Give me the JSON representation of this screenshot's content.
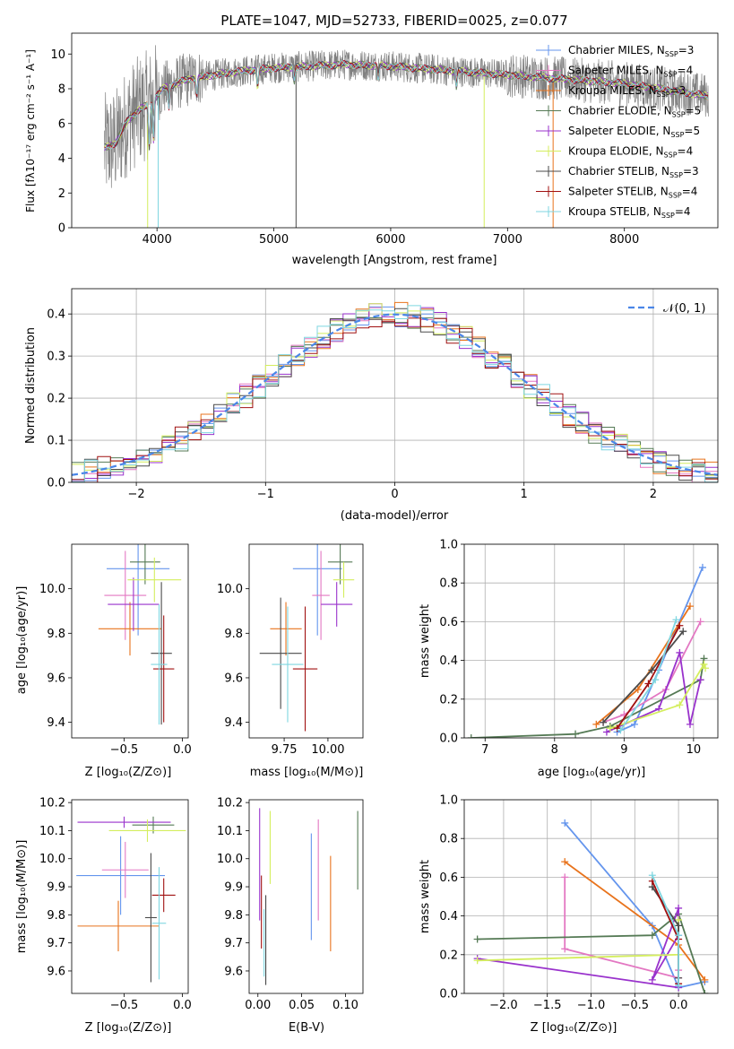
{
  "colors": {
    "Chabrier MILES": "#6495ed",
    "Salpeter MILES": "#e377c2",
    "Kroupa MILES": "#e8731c",
    "Chabrier ELODIE": "#557a55",
    "Salpeter ELODIE": "#9932cc",
    "Kroupa ELODIE": "#d4ee5e",
    "Chabrier STELIB": "#4a4a4a",
    "Salpeter STELIB": "#a01010",
    "Kroupa STELIB": "#7fd6e0",
    "data": "#808080"
  },
  "chart_data": [
    {
      "type": "line",
      "panel": "spectrum",
      "title": "PLATE=1047, MJD=52733, FIBERID=0025, z=0.077",
      "xlabel": "wavelength [Angstrom, rest frame]",
      "ylabel": "Flux [fλ10⁻¹⁷ erg cm⁻² s⁻¹ A⁻¹]",
      "xlim": [
        3270,
        8800
      ],
      "ylim": [
        0,
        11.2
      ],
      "xticks": [
        "4000",
        "5000",
        "6000",
        "7000",
        "8000"
      ],
      "yticks": [
        "0",
        "2",
        "4",
        "6",
        "8",
        "10"
      ],
      "continuum": {
        "x": [
          3550,
          3650,
          3750,
          3850,
          3950,
          4050,
          4150,
          4300,
          4500,
          4700,
          5000,
          5300,
          5600,
          6000,
          6400,
          6800,
          7200,
          7600,
          8000,
          8400,
          8700
        ],
        "y": [
          4.6,
          4.9,
          6.2,
          6.8,
          7.2,
          8.0,
          8.3,
          8.6,
          8.8,
          9.0,
          9.2,
          9.3,
          9.4,
          9.3,
          9.1,
          8.9,
          8.7,
          8.5,
          8.3,
          7.9,
          7.6
        ]
      },
      "series": [
        {
          "name": "Chabrier MILES",
          "nssp": "3"
        },
        {
          "name": "Salpeter MILES",
          "nssp": "4"
        },
        {
          "name": "Kroupa MILES",
          "nssp": "3"
        },
        {
          "name": "Chabrier ELODIE",
          "nssp": "5"
        },
        {
          "name": "Salpeter ELODIE",
          "nssp": "5"
        },
        {
          "name": "Kroupa ELODIE",
          "nssp": "4"
        },
        {
          "name": "Chabrier STELIB",
          "nssp": "3"
        },
        {
          "name": "Salpeter STELIB",
          "nssp": "4"
        },
        {
          "name": "Kroupa STELIB",
          "nssp": "4"
        }
      ],
      "legend": "right"
    },
    {
      "type": "bar",
      "panel": "residuals",
      "xlabel": "(data-model)/error",
      "ylabel": "Normed distribution",
      "xlim": [
        -2.5,
        2.5
      ],
      "ylim": [
        0,
        0.46
      ],
      "xticks": [
        "−2",
        "−1",
        "0",
        "1",
        "2"
      ],
      "yticks": [
        "0.0",
        "0.1",
        "0.2",
        "0.3",
        "0.4"
      ],
      "bin_width": 0.1,
      "gaussian_label": "𝒩(0, 1)",
      "gaussian_color": "#4a86e8",
      "legend": "top-right",
      "grid": true
    },
    {
      "type": "scatter",
      "panel": "age-vs-Z",
      "xlabel": "Z [log₁₀(Z/Z⊙)]",
      "ylabel": "age  [log₁₀(age/yr)]",
      "xlim": [
        -0.95,
        0.05
      ],
      "ylim": [
        9.33,
        10.2
      ],
      "xticks": [
        "−0.5",
        "0.0"
      ],
      "yticks": [
        "9.4",
        "9.6",
        "9.8",
        "10.0"
      ],
      "points": [
        {
          "series": "Chabrier MILES",
          "x": -0.38,
          "xerr": 0.27,
          "y": 10.09,
          "yerr": 0.3
        },
        {
          "series": "Salpeter MILES",
          "x": -0.49,
          "xerr": 0.18,
          "y": 9.97,
          "yerr": 0.2
        },
        {
          "series": "Kroupa MILES",
          "x": -0.45,
          "xerr": 0.27,
          "y": 9.82,
          "yerr": 0.12
        },
        {
          "series": "Chabrier ELODIE",
          "x": -0.32,
          "xerr": 0.13,
          "y": 10.12,
          "yerr": 0.1
        },
        {
          "series": "Salpeter ELODIE",
          "x": -0.42,
          "xerr": 0.22,
          "y": 9.93,
          "yerr": 0.12
        },
        {
          "series": "Kroupa ELODIE",
          "x": -0.24,
          "xerr": 0.23,
          "y": 10.04,
          "yerr": 0.1
        },
        {
          "series": "Chabrier STELIB",
          "x": -0.18,
          "xerr": 0.09,
          "y": 9.71,
          "yerr": 0.32
        },
        {
          "series": "Salpeter STELIB",
          "x": -0.16,
          "xerr": 0.09,
          "y": 9.64,
          "yerr": 0.24
        },
        {
          "series": "Kroupa STELIB",
          "x": -0.2,
          "xerr": 0.07,
          "y": 9.66,
          "yerr": 0.27
        }
      ]
    },
    {
      "type": "scatter",
      "panel": "age-vs-mass",
      "xlabel": "mass [log₁₀(M/M⊙)]",
      "xlim": [
        9.55,
        10.2
      ],
      "ylim": [
        9.33,
        10.2
      ],
      "xticks": [
        "9.75",
        "10.00"
      ],
      "yticks": [
        "9.4",
        "9.6",
        "9.8",
        "10.0"
      ],
      "points": [
        {
          "series": "Chabrier MILES",
          "x": 9.94,
          "xerr": 0.14,
          "y": 10.09,
          "yerr": 0.3
        },
        {
          "series": "Salpeter MILES",
          "x": 9.96,
          "xerr": 0.05,
          "y": 9.97,
          "yerr": 0.2
        },
        {
          "series": "Kroupa MILES",
          "x": 9.76,
          "xerr": 0.09,
          "y": 9.82,
          "yerr": 0.12
        },
        {
          "series": "Chabrier ELODIE",
          "x": 10.07,
          "xerr": 0.07,
          "y": 10.12,
          "yerr": 0.1
        },
        {
          "series": "Salpeter ELODIE",
          "x": 10.05,
          "xerr": 0.09,
          "y": 9.93,
          "yerr": 0.1
        },
        {
          "series": "Kroupa ELODIE",
          "x": 10.09,
          "xerr": 0.06,
          "y": 10.04,
          "yerr": 0.08
        },
        {
          "series": "Chabrier STELIB",
          "x": 9.73,
          "xerr": 0.12,
          "y": 9.71,
          "yerr": 0.25
        },
        {
          "series": "Salpeter STELIB",
          "x": 9.87,
          "xerr": 0.07,
          "y": 9.64,
          "yerr": 0.28
        },
        {
          "series": "Kroupa STELIB",
          "x": 9.77,
          "xerr": 0.09,
          "y": 9.66,
          "yerr": 0.26
        }
      ]
    },
    {
      "type": "line",
      "panel": "massweight-vs-age",
      "xlabel": "age  [log₁₀(age/yr)]",
      "ylabel": "mass weight",
      "xlim": [
        6.7,
        10.35
      ],
      "ylim": [
        0,
        1.0
      ],
      "xticks": [
        "7",
        "8",
        "9",
        "10"
      ],
      "yticks": [
        "0.0",
        "0.2",
        "0.4",
        "0.6",
        "0.8",
        "1.0"
      ],
      "grid": true,
      "series": [
        {
          "name": "Chabrier MILES",
          "x": [
            8.9,
            9.15,
            9.5,
            10.13
          ],
          "y": [
            0.03,
            0.07,
            0.35,
            0.88
          ]
        },
        {
          "name": "Salpeter MILES",
          "x": [
            8.7,
            9.0,
            9.6,
            10.1
          ],
          "y": [
            0.08,
            0.12,
            0.25,
            0.6
          ]
        },
        {
          "name": "Kroupa MILES",
          "x": [
            8.6,
            9.2,
            9.95
          ],
          "y": [
            0.07,
            0.25,
            0.68
          ]
        },
        {
          "name": "Chabrier ELODIE",
          "x": [
            6.8,
            8.3,
            8.8,
            10.1,
            10.15
          ],
          "y": [
            0.0,
            0.02,
            0.06,
            0.3,
            0.41
          ]
        },
        {
          "name": "Salpeter ELODIE",
          "x": [
            8.75,
            9.5,
            9.8,
            9.95,
            10.1
          ],
          "y": [
            0.03,
            0.15,
            0.44,
            0.07,
            0.3
          ]
        },
        {
          "name": "Kroupa ELODIE",
          "x": [
            8.8,
            9.8,
            10.15,
            10.17
          ],
          "y": [
            0.05,
            0.17,
            0.38,
            0.36
          ]
        },
        {
          "name": "Chabrier STELIB",
          "x": [
            8.7,
            9.4,
            9.85
          ],
          "y": [
            0.08,
            0.35,
            0.55
          ]
        },
        {
          "name": "Salpeter STELIB",
          "x": [
            8.9,
            9.35,
            9.8
          ],
          "y": [
            0.05,
            0.28,
            0.58
          ]
        },
        {
          "name": "Kroupa STELIB",
          "x": [
            8.95,
            9.45,
            9.75
          ],
          "y": [
            0.04,
            0.3,
            0.61
          ]
        }
      ]
    },
    {
      "type": "scatter",
      "panel": "mass-vs-Z",
      "xlabel": "Z [log₁₀(Z/Z⊙)]",
      "ylabel": "mass [log₁₀(M/M⊙)]",
      "xlim": [
        -0.95,
        0.05
      ],
      "ylim": [
        9.52,
        10.21
      ],
      "xticks": [
        "−0.5",
        "0.0"
      ],
      "yticks": [
        "9.6",
        "9.7",
        "9.8",
        "9.9",
        "10.0",
        "10.1",
        "10.2"
      ],
      "points": [
        {
          "series": "Chabrier MILES",
          "x": -0.53,
          "xerr": 0.38,
          "y": 9.94,
          "yerr": 0.14
        },
        {
          "series": "Salpeter MILES",
          "x": -0.49,
          "xerr": 0.2,
          "y": 9.96,
          "yerr": 0.1
        },
        {
          "series": "Kroupa MILES",
          "x": -0.55,
          "xerr": 0.35,
          "y": 9.76,
          "yerr": 0.09
        },
        {
          "series": "Chabrier ELODIE",
          "x": -0.25,
          "xerr": 0.18,
          "y": 10.12,
          "yerr": 0.03
        },
        {
          "series": "Salpeter ELODIE",
          "x": -0.5,
          "xerr": 0.4,
          "y": 10.13,
          "yerr": 0.02
        },
        {
          "series": "Kroupa ELODIE",
          "x": -0.3,
          "xerr": 0.33,
          "y": 10.1,
          "yerr": 0.04
        },
        {
          "series": "Chabrier STELIB",
          "x": -0.27,
          "xerr": 0.05,
          "y": 9.79,
          "yerr": 0.23
        },
        {
          "series": "Salpeter STELIB",
          "x": -0.16,
          "xerr": 0.1,
          "y": 9.87,
          "yerr": 0.06
        },
        {
          "series": "Kroupa STELIB",
          "x": -0.2,
          "xerr": 0.06,
          "y": 9.77,
          "yerr": 0.2
        }
      ]
    },
    {
      "type": "scatter",
      "panel": "mass-vs-EBV",
      "xlabel": "E(B-V)",
      "xlim": [
        -0.01,
        0.12
      ],
      "ylim": [
        9.52,
        10.21
      ],
      "xticks": [
        "0.00",
        "0.05",
        "0.10"
      ],
      "yticks": [
        "9.6",
        "9.7",
        "9.8",
        "9.9",
        "10.0",
        "10.1",
        "10.2"
      ],
      "points": [
        {
          "series": "Chabrier MILES",
          "x": 0.061,
          "y": 9.9,
          "yerr": 0.19
        },
        {
          "series": "Salpeter MILES",
          "x": 0.069,
          "y": 9.96,
          "yerr": 0.18
        },
        {
          "series": "Kroupa MILES",
          "x": 0.083,
          "y": 9.84,
          "yerr": 0.17
        },
        {
          "series": "Chabrier ELODIE",
          "x": 0.114,
          "y": 10.03,
          "yerr": 0.14
        },
        {
          "series": "Salpeter ELODIE",
          "x": 0.002,
          "y": 9.98,
          "yerr": 0.2
        },
        {
          "series": "Kroupa ELODIE",
          "x": 0.014,
          "y": 10.04,
          "yerr": 0.13
        },
        {
          "series": "Chabrier STELIB",
          "x": 0.009,
          "y": 9.71,
          "yerr": 0.16
        },
        {
          "series": "Salpeter STELIB",
          "x": 0.004,
          "y": 9.81,
          "yerr": 0.13
        },
        {
          "series": "Kroupa STELIB",
          "x": 0.007,
          "y": 9.7,
          "yerr": 0.12
        }
      ]
    },
    {
      "type": "line",
      "panel": "massweight-vs-Z",
      "xlabel": "Z [log₁₀(Z/Z⊙)]",
      "ylabel": "mass weight",
      "xlim": [
        -2.45,
        0.45
      ],
      "ylim": [
        0,
        1.0
      ],
      "xticks": [
        "−2.0",
        "−1.5",
        "−1.0",
        "−0.5",
        "0.0"
      ],
      "yticks": [
        "0.0",
        "0.2",
        "0.4",
        "0.6",
        "0.8",
        "1.0"
      ],
      "grid": true,
      "series": [
        {
          "name": "Chabrier MILES",
          "x": [
            -1.3,
            -0.3,
            0.0,
            0.3
          ],
          "y": [
            0.88,
            0.35,
            0.03,
            0.06
          ]
        },
        {
          "name": "Salpeter MILES",
          "x": [
            -1.3,
            -1.3,
            0.0,
            0.0
          ],
          "y": [
            0.6,
            0.23,
            0.08,
            0.12
          ]
        },
        {
          "name": "Kroupa MILES",
          "x": [
            -1.3,
            0.0,
            0.3
          ],
          "y": [
            0.68,
            0.25,
            0.07
          ]
        },
        {
          "name": "Chabrier ELODIE",
          "x": [
            -2.3,
            -0.3,
            0.0,
            0.3
          ],
          "y": [
            0.28,
            0.3,
            0.41,
            0.0
          ]
        },
        {
          "name": "Salpeter ELODIE",
          "x": [
            -2.3,
            0.0,
            0.0,
            -0.3,
            0.0
          ],
          "y": [
            0.18,
            0.03,
            0.44,
            0.07,
            0.3
          ]
        },
        {
          "name": "Kroupa ELODIE",
          "x": [
            -2.3,
            0.0,
            0.0
          ],
          "y": [
            0.17,
            0.2,
            0.38
          ]
        },
        {
          "name": "Chabrier STELIB",
          "x": [
            -0.3,
            0.0,
            0.0
          ],
          "y": [
            0.55,
            0.35,
            0.08
          ]
        },
        {
          "name": "Salpeter STELIB",
          "x": [
            -0.3,
            0.0,
            0.0
          ],
          "y": [
            0.58,
            0.28,
            0.05
          ]
        },
        {
          "name": "Kroupa STELIB",
          "x": [
            -0.3,
            0.0,
            0.0
          ],
          "y": [
            0.61,
            0.3,
            0.04
          ]
        }
      ]
    }
  ]
}
